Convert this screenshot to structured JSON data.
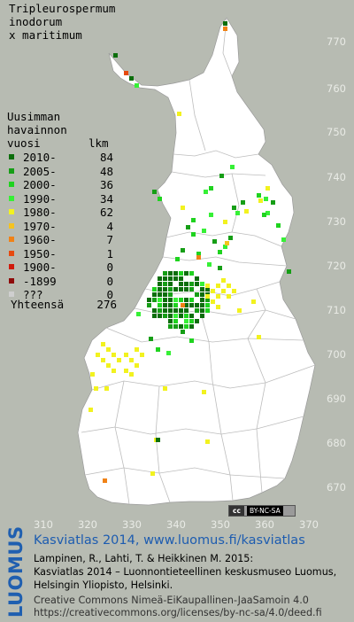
{
  "title_lines": [
    "Tripleurospermum",
    "inodorum",
    "x maritimum"
  ],
  "legend": {
    "heading_lines": [
      "Uusimman",
      "havainnon",
      "vuosi"
    ],
    "count_heading": "lkm",
    "items": [
      {
        "label": "2010-",
        "count": "84",
        "color": "#0c6e0c"
      },
      {
        "label": "2005-",
        "count": "48",
        "color": "#169e16"
      },
      {
        "label": "2000-",
        "count": "36",
        "color": "#1fd31f"
      },
      {
        "label": "1990-",
        "count": "34",
        "color": "#36f036"
      },
      {
        "label": "1980-",
        "count": "62",
        "color": "#f2f21f"
      },
      {
        "label": "1970-",
        "count": "4",
        "color": "#f5c31f"
      },
      {
        "label": "1960-",
        "count": "7",
        "color": "#f08216"
      },
      {
        "label": "1950-",
        "count": "1",
        "color": "#e64a10"
      },
      {
        "label": "1900-",
        "count": "0",
        "color": "#d01a0c"
      },
      {
        "label": "-1899",
        "count": "0",
        "color": "#8e0a0a"
      },
      {
        "label": "???",
        "count": "0",
        "color": "#cfcfcf"
      }
    ],
    "total_label": "Yhteensä",
    "total_count": "276"
  },
  "y_ticks": [
    "770",
    "760",
    "750",
    "740",
    "730",
    "720",
    "710",
    "700",
    "690",
    "680",
    "670"
  ],
  "x_ticks": [
    "310",
    "320",
    "330",
    "340",
    "350",
    "360",
    "370"
  ],
  "cc_badge": {
    "icon": "cc",
    "text": "BY-NC-SA"
  },
  "brand": "LUOMUS",
  "footer": {
    "line1": "Kasviatlas 2014, www.luomus.fi/kasviatlas",
    "line2": "Lampinen, R., Lahti, T. & Heikkinen M. 2015:",
    "line3": "Kasviatlas 2014 – Luonnontieteellinen keskusmuseo Luomus,",
    "line4": "Helsingin Yliopisto, Helsinki.",
    "line5": "Creative Commons Nimeä-EiKaupallinen-JaaSamoin 4.0",
    "line6": "https://creativecommons.org/licenses/by-nc-sa/4.0/deed.fi"
  },
  "colors": {
    "background": "#b7bbb2",
    "land": "#ffffff",
    "borders": "#c8c8c8",
    "accent": "#1d5cb0"
  }
}
